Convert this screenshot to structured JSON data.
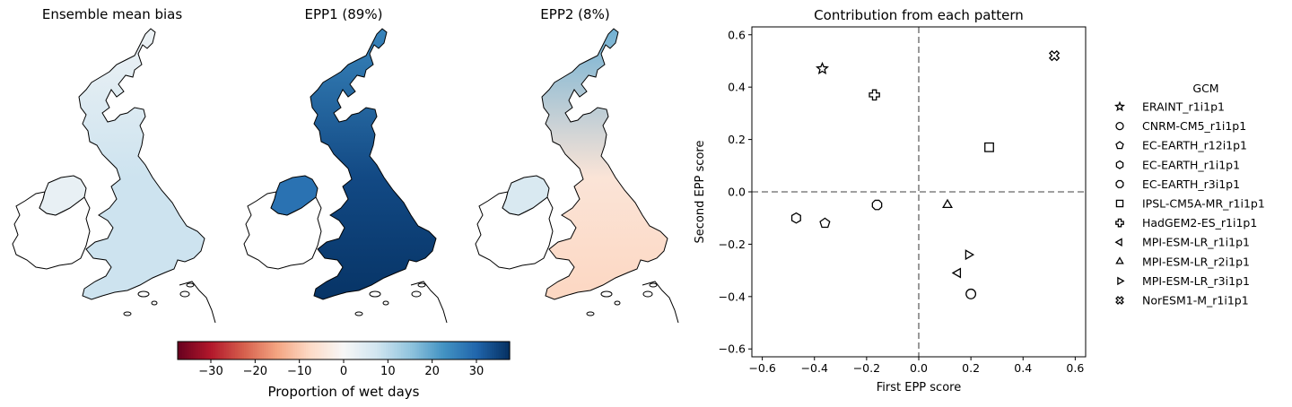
{
  "maps": [
    {
      "title": "Ensemble mean bias",
      "fill_value": 8,
      "ni_value": 3,
      "south_value": 8,
      "north_value": 2
    },
    {
      "title": "EPP1 (89%)",
      "fill_value": 34,
      "ni_value": 28,
      "south_value": 37,
      "north_value": 25
    },
    {
      "title": "EPP2 (8%)",
      "fill_value": -5,
      "ni_value": 6,
      "south_value": -8,
      "north_value": 18
    }
  ],
  "colorbar": {
    "label": "Proportion of wet days",
    "ticks": [
      "−30",
      "−20",
      "−10",
      "0",
      "10",
      "20",
      "30"
    ],
    "tick_values": [
      -30,
      -20,
      -10,
      0,
      10,
      20,
      30
    ],
    "range": [
      -37.5,
      37.5
    ],
    "colormap": [
      "#67001f",
      "#b2182b",
      "#d6604d",
      "#f4a582",
      "#fddbc7",
      "#f7f7f7",
      "#d1e5f0",
      "#92c5de",
      "#4393c3",
      "#2166ac",
      "#053061"
    ]
  },
  "chart_data": {
    "type": "scatter",
    "title": "Contribution from each pattern",
    "xlabel": "First EPP score",
    "ylabel": "Second EPP score",
    "xlim": [
      -0.64,
      0.64
    ],
    "ylim": [
      -0.63,
      0.63
    ],
    "xticks": [
      "−0.6",
      "−0.4",
      "−0.2",
      "0.0",
      "0.2",
      "0.4",
      "0.6"
    ],
    "xtick_values": [
      -0.6,
      -0.4,
      -0.2,
      0.0,
      0.2,
      0.4,
      0.6
    ],
    "yticks": [
      "0.6",
      "0.4",
      "0.2",
      "0.0",
      "−0.2",
      "−0.4",
      "−0.6"
    ],
    "ytick_values": [
      0.6,
      0.4,
      0.2,
      0.0,
      -0.2,
      -0.4,
      -0.6
    ],
    "reference_lines": {
      "x": 0,
      "y": 0,
      "style": "dashed",
      "color": "#808080"
    },
    "legend": {
      "title": "GCM",
      "placement": "right",
      "entries": [
        {
          "name": "ERAINT_r1i1p1",
          "marker": "star"
        },
        {
          "name": "CNRM-CM5_r1i1p1",
          "marker": "circle"
        },
        {
          "name": "EC-EARTH_r12i1p1",
          "marker": "pentagon"
        },
        {
          "name": "EC-EARTH_r1i1p1",
          "marker": "hexagon"
        },
        {
          "name": "EC-EARTH_r3i1p1",
          "marker": "octagon"
        },
        {
          "name": "IPSL-CM5A-MR_r1i1p1",
          "marker": "square"
        },
        {
          "name": "HadGEM2-ES_r1i1p1",
          "marker": "plus"
        },
        {
          "name": "MPI-ESM-LR_r1i1p1",
          "marker": "triangle-left"
        },
        {
          "name": "MPI-ESM-LR_r2i1p1",
          "marker": "triangle-up"
        },
        {
          "name": "MPI-ESM-LR_r3i1p1",
          "marker": "triangle-right"
        },
        {
          "name": "NorESM1-M_r1i1p1",
          "marker": "x"
        }
      ]
    },
    "points": [
      {
        "name": "ERAINT_r1i1p1",
        "marker": "star",
        "x": -0.37,
        "y": 0.47
      },
      {
        "name": "CNRM-CM5_r1i1p1",
        "marker": "circle",
        "x": 0.2,
        "y": -0.39
      },
      {
        "name": "EC-EARTH_r12i1p1",
        "marker": "pentagon",
        "x": -0.36,
        "y": -0.12
      },
      {
        "name": "EC-EARTH_r1i1p1",
        "marker": "hexagon",
        "x": -0.47,
        "y": -0.1
      },
      {
        "name": "EC-EARTH_r3i1p1",
        "marker": "octagon",
        "x": -0.16,
        "y": -0.05
      },
      {
        "name": "IPSL-CM5A-MR_r1i1p1",
        "marker": "square",
        "x": 0.27,
        "y": 0.17
      },
      {
        "name": "HadGEM2-ES_r1i1p1",
        "marker": "plus",
        "x": -0.17,
        "y": 0.37
      },
      {
        "name": "MPI-ESM-LR_r1i1p1",
        "marker": "triangle-left",
        "x": 0.15,
        "y": -0.31
      },
      {
        "name": "MPI-ESM-LR_r2i1p1",
        "marker": "triangle-up",
        "x": 0.11,
        "y": -0.05
      },
      {
        "name": "MPI-ESM-LR_r3i1p1",
        "marker": "triangle-right",
        "x": 0.19,
        "y": -0.24
      },
      {
        "name": "NorESM1-M_r1i1p1",
        "marker": "x",
        "x": 0.52,
        "y": 0.52
      }
    ]
  }
}
